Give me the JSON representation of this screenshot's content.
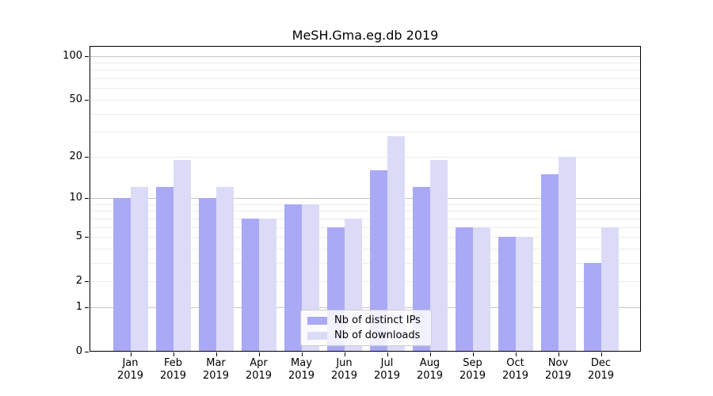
{
  "chart_data": {
    "type": "bar",
    "title": "MeSH.Gma.eg.db 2019",
    "year_label": "2019",
    "categories": [
      "Jan",
      "Feb",
      "Mar",
      "Apr",
      "May",
      "Jun",
      "Jul",
      "Aug",
      "Sep",
      "Oct",
      "Nov",
      "Dec"
    ],
    "series": [
      {
        "name": "Nb of distinct IPs",
        "color": "#a9a9f6",
        "values": [
          10,
          12,
          10,
          7,
          9,
          6,
          16,
          12,
          6,
          5,
          15,
          3
        ]
      },
      {
        "name": "Nb of downloads",
        "color": "#dbdbf8",
        "values": [
          12,
          19,
          12,
          7,
          9,
          7,
          28,
          19,
          6,
          5,
          20,
          6
        ]
      }
    ],
    "y_axis": {
      "scale": "log1p",
      "ticks": [
        0,
        1,
        2,
        5,
        10,
        20,
        50,
        100
      ],
      "major_gridlines": [
        1,
        10,
        100
      ],
      "minor_gridlines": [
        2,
        3,
        4,
        5,
        6,
        7,
        8,
        9,
        20,
        30,
        40,
        50,
        60,
        70,
        80,
        90
      ],
      "ylim": [
        0,
        117
      ]
    },
    "grid": true,
    "legend_position": "bottom-center",
    "colors": {
      "frame": "#000000",
      "grid_major": "#c6c6c6",
      "grid_minor": "#ececec"
    }
  }
}
